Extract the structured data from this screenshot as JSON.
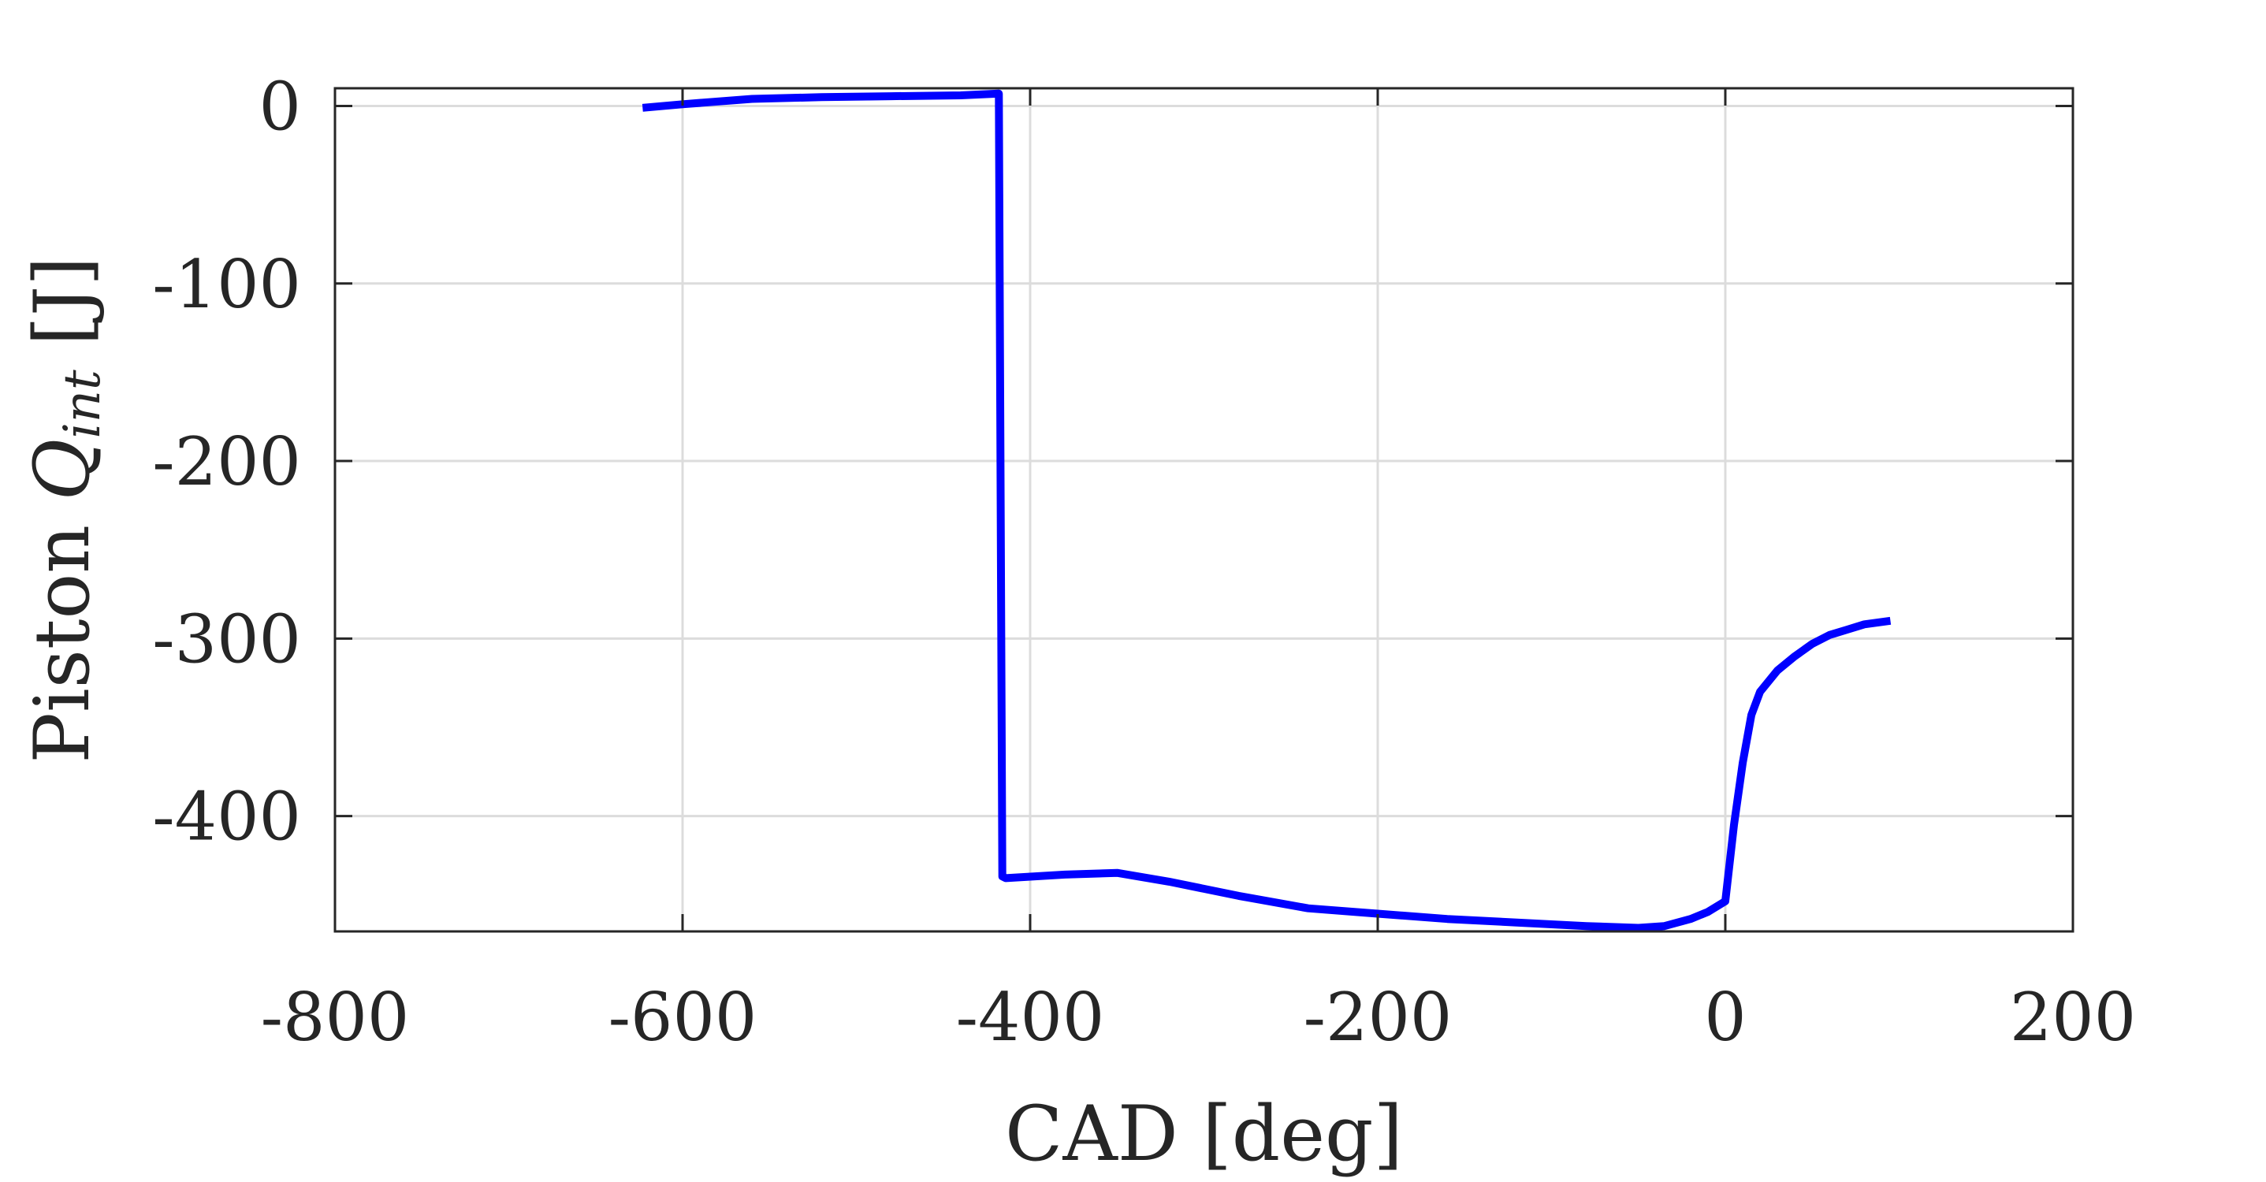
{
  "chart_data": {
    "type": "line",
    "xlabel": "CAD [deg]",
    "ylabel": {
      "prefix": "Piston ",
      "symbol": "Q",
      "subscript": "int",
      "suffix": " [J]"
    },
    "xlim": [
      -800,
      200
    ],
    "ylim": [
      -465,
      10
    ],
    "xticks": [
      -800,
      -600,
      -400,
      -200,
      0,
      200
    ],
    "yticks": [
      0,
      -100,
      -200,
      -300,
      -400
    ],
    "xtick_labels": [
      "-800",
      "-600",
      "-400",
      "-200",
      "0",
      "200"
    ],
    "ytick_labels": [
      "0",
      "-100",
      "-200",
      "-300",
      "-400"
    ],
    "grid": true,
    "series_color": "#0000ff",
    "series": [
      {
        "x": [
          -623,
          -600,
          -560,
          -520,
          -480,
          -440,
          -418,
          -416,
          -416,
          -414,
          -380,
          -350,
          -320,
          -280,
          -240,
          -200,
          -160,
          -120,
          -80,
          -50,
          -35,
          -20,
          -10,
          0,
          5,
          10,
          15,
          20,
          30,
          40,
          50,
          60,
          70,
          80,
          95
        ],
        "y": [
          -1,
          1,
          4,
          5,
          5.5,
          6,
          7,
          -434,
          -434,
          -435,
          -433,
          -432,
          -437,
          -445,
          -452,
          -455,
          -458,
          -460,
          -462,
          -463,
          -462,
          -458,
          -454,
          -448,
          -405,
          -370,
          -343,
          -330,
          -318,
          -310,
          -303,
          -298,
          -295,
          -292,
          -290
        ]
      }
    ]
  }
}
